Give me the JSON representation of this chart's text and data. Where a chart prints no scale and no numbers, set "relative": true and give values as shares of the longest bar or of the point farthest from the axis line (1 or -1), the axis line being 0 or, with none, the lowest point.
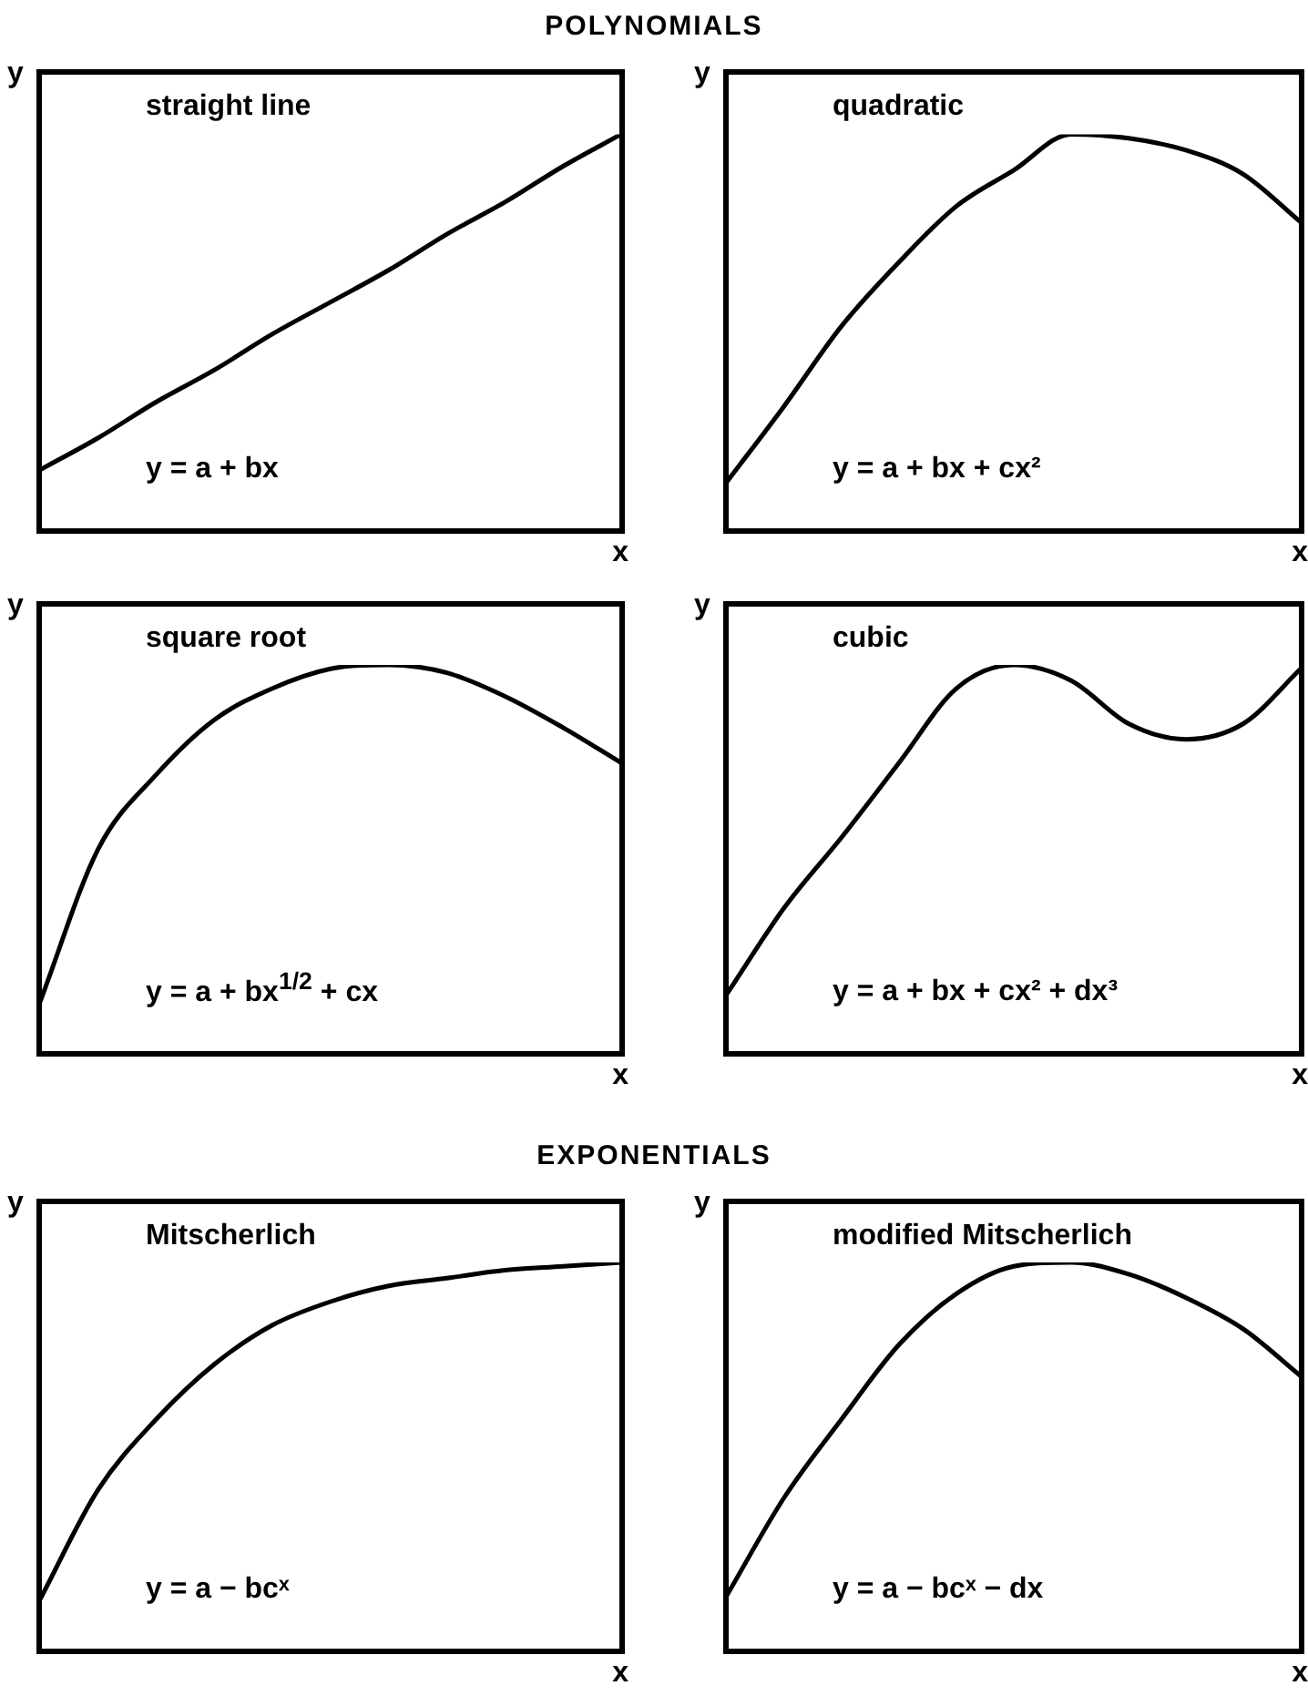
{
  "chart_data": [
    {
      "type": "line",
      "relative": true,
      "subtitle": "POLYNOMIALS",
      "title": "straight line",
      "xlabel": "x",
      "ylabel": "y",
      "annotations": [
        "y = a + bx"
      ],
      "categories": [
        null,
        null,
        null,
        null,
        null,
        null,
        null,
        null,
        null,
        null,
        null
      ],
      "series": [
        {
          "color": "#000000",
          "values": [
            0.16,
            0.24,
            0.33,
            0.41,
            0.5,
            0.58,
            0.66,
            0.75,
            0.83,
            0.92,
            1
          ]
        }
      ]
    },
    {
      "type": "line",
      "relative": true,
      "title": "quadratic",
      "xlabel": "x",
      "ylabel": "y",
      "annotations": [
        "y = a + bx + cx²"
      ],
      "categories": [
        null,
        null,
        null,
        null,
        null,
        null,
        null,
        null,
        null,
        null,
        null
      ],
      "series": [
        {
          "color": "#000000",
          "values": [
            0.13,
            0.32,
            0.52,
            0.68,
            0.82,
            0.91,
            1,
            0.99,
            0.96,
            0.9,
            0.78
          ]
        }
      ]
    },
    {
      "type": "line",
      "relative": true,
      "title": "square root",
      "xlabel": "x",
      "ylabel": "y",
      "annotations": [
        "y = a + bx$^{1/2}$ + cx"
      ],
      "categories": [
        null,
        null,
        null,
        null,
        null,
        null,
        null,
        null,
        null,
        null,
        null
      ],
      "series": [
        {
          "color": "#000000",
          "values": [
            0.14,
            0.53,
            0.72,
            0.86,
            0.94,
            0.99,
            1,
            0.98,
            0.92,
            0.84,
            0.75
          ]
        }
      ]
    },
    {
      "type": "line",
      "relative": true,
      "title": "cubic",
      "xlabel": "x",
      "ylabel": "y",
      "annotations": [
        "y = a + bx + cx² + dx³"
      ],
      "categories": [
        null,
        null,
        null,
        null,
        null,
        null,
        null,
        null,
        null,
        null,
        null
      ],
      "series": [
        {
          "color": "#000000",
          "values": [
            0.16,
            0.38,
            0.56,
            0.75,
            0.94,
            1,
            0.96,
            0.85,
            0.81,
            0.85,
            0.99
          ]
        }
      ]
    },
    {
      "type": "line",
      "relative": true,
      "subtitle": "EXPONENTIALS",
      "title": "Mitscherlich",
      "xlabel": "x",
      "ylabel": "y",
      "annotations": [
        "y = a − bcˣ"
      ],
      "categories": [
        null,
        null,
        null,
        null,
        null,
        null,
        null,
        null,
        null,
        null,
        null
      ],
      "series": [
        {
          "color": "#000000",
          "values": [
            0.14,
            0.42,
            0.6,
            0.74,
            0.84,
            0.9,
            0.94,
            0.96,
            0.98,
            0.99,
            1
          ]
        }
      ]
    },
    {
      "type": "line",
      "relative": true,
      "title": "modified Mitscherlich",
      "xlabel": "x",
      "ylabel": "y",
      "annotations": [
        "y = a − bcˣ − dx"
      ],
      "categories": [
        null,
        null,
        null,
        null,
        null,
        null,
        null,
        null,
        null,
        null,
        null
      ],
      "series": [
        {
          "color": "#000000",
          "values": [
            0.15,
            0.4,
            0.6,
            0.79,
            0.92,
            0.99,
            1,
            0.97,
            0.91,
            0.83,
            0.71
          ]
        }
      ]
    }
  ]
}
